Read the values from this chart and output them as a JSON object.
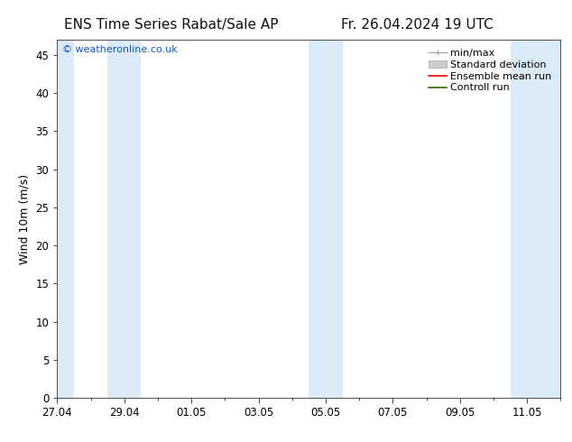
{
  "title": "ENS Time Series Rabat/Sale AP",
  "title_right": "Fr. 26.04.2024 19 UTC",
  "ylabel": "Wind 10m (m/s)",
  "watermark": "© weatheronline.co.uk",
  "watermark_color": "#1155cc",
  "background_color": "#ffffff",
  "plot_bg_color": "#ffffff",
  "ylim": [
    0,
    47
  ],
  "yticks": [
    0,
    5,
    10,
    15,
    20,
    25,
    30,
    35,
    40,
    45
  ],
  "xlim": [
    0,
    15
  ],
  "xtick_labels": [
    "27.04",
    "29.04",
    "01.05",
    "03.05",
    "05.05",
    "07.05",
    "09.05",
    "11.05"
  ],
  "xtick_positions": [
    0,
    2,
    4,
    6,
    8,
    10,
    12,
    14
  ],
  "shaded_bands": [
    {
      "xmin": -0.5,
      "xmax": 0.5
    },
    {
      "xmin": 1.5,
      "xmax": 2.5
    },
    {
      "xmin": 7.5,
      "xmax": 8.5
    },
    {
      "xmin": 13.5,
      "xmax": 15.0
    }
  ],
  "shaded_color": "#daeaf6",
  "title_fontsize": 11,
  "label_fontsize": 9,
  "tick_fontsize": 8.5,
  "watermark_fontsize": 8,
  "legend_fontsize": 8
}
